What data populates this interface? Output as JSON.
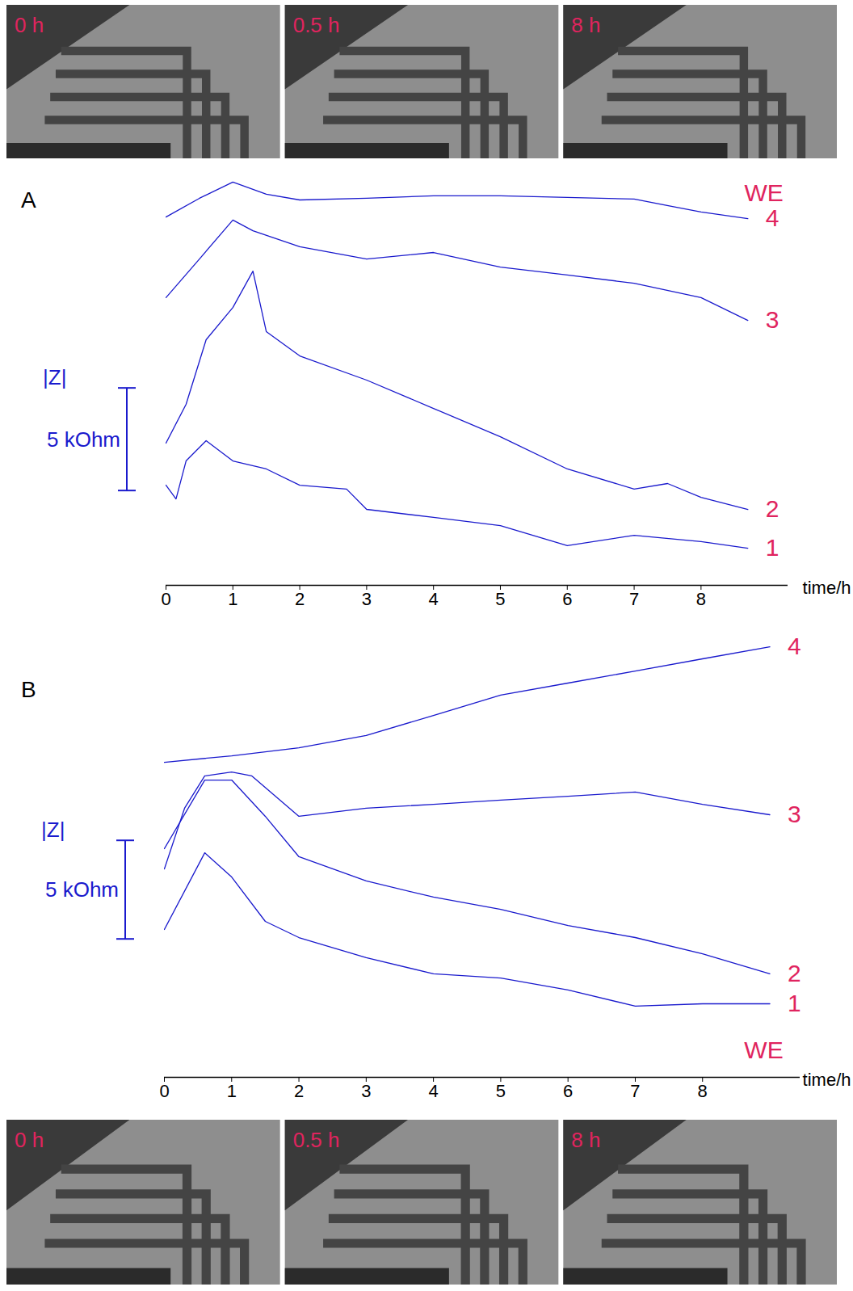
{
  "chart_data": [
    {
      "type": "line",
      "title": "A",
      "xlabel": "time/h",
      "xlim": [
        0,
        9.3
      ],
      "xticks": [
        0,
        1,
        2,
        3,
        4,
        5,
        6,
        7,
        8
      ],
      "ylim": [
        0,
        20
      ],
      "tick_labels": "x",
      "grid": false,
      "scale_bar": {
        "title": "|Z|",
        "label": "5 kOhm",
        "value": 5,
        "from": 4.6
      },
      "annotations": [
        {
          "text": "WE",
          "x": 8.94,
          "y": 19.1
        }
      ],
      "series": [
        {
          "name": "1",
          "color": "#1a1acd",
          "x": [
            0,
            0.15,
            0.3,
            0.6,
            1,
            1.5,
            2,
            2.7,
            3,
            4,
            5,
            6,
            7,
            8,
            8.7
          ],
          "values": [
            4.88,
            4.21,
            6.06,
            7.05,
            6.06,
            5.67,
            4.88,
            4.69,
            3.7,
            3.31,
            2.91,
            1.93,
            2.44,
            2.13,
            1.81
          ]
        },
        {
          "name": "2",
          "color": "#1a1acd",
          "x": [
            0,
            0.3,
            0.6,
            1,
            1.3,
            1.5,
            2,
            3,
            4,
            5,
            6,
            7,
            7.5,
            8,
            8.7
          ],
          "values": [
            6.93,
            8.82,
            11.97,
            13.54,
            15.31,
            12.36,
            11.18,
            10.0,
            8.62,
            7.24,
            5.67,
            4.69,
            4.96,
            4.29,
            3.7
          ]
        },
        {
          "name": "3",
          "color": "#1a1acd",
          "x": [
            0,
            0.5,
            1,
            1.3,
            2,
            3,
            4,
            5,
            6,
            7,
            8,
            8.7
          ],
          "values": [
            14.02,
            15.9,
            17.8,
            17.28,
            16.5,
            15.9,
            16.22,
            15.51,
            15.12,
            14.72,
            14.02,
            12.91
          ]
        },
        {
          "name": "4",
          "color": "#1a1acd",
          "x": [
            0,
            0.5,
            1,
            1.5,
            2,
            3,
            4,
            5,
            6,
            7,
            8,
            8.7
          ],
          "values": [
            17.95,
            18.86,
            19.65,
            19.06,
            18.78,
            18.86,
            18.98,
            18.98,
            18.9,
            18.82,
            18.19,
            17.87
          ]
        }
      ]
    },
    {
      "type": "line",
      "title": "B",
      "xlabel": "time/h",
      "xlim": [
        0,
        9.45
      ],
      "xticks": [
        0,
        1,
        2,
        3,
        4,
        5,
        6,
        7,
        8
      ],
      "ylim": [
        0,
        22.5
      ],
      "tick_labels": "x",
      "grid": false,
      "scale_bar": {
        "title": "|Z|",
        "label": "5 kOhm",
        "value": 5,
        "from": 7.0
      },
      "annotations": [
        {
          "text": "WE",
          "x": 8.91,
          "y": 1.35
        }
      ],
      "series": [
        {
          "name": "1",
          "color": "#1a1acd",
          "x": [
            0,
            0.6,
            1,
            1.5,
            2,
            3,
            4,
            5,
            6,
            7,
            8,
            9
          ],
          "values": [
            7.5,
            11.39,
            10.16,
            7.91,
            7.09,
            6.07,
            5.25,
            5.04,
            4.43,
            3.61,
            3.73,
            3.73
          ]
        },
        {
          "name": "2",
          "color": "#1a1acd",
          "x": [
            0,
            0.6,
            1,
            1.5,
            2,
            3,
            4,
            5,
            6,
            7,
            8,
            9
          ],
          "values": [
            11.6,
            15.08,
            15.08,
            13.24,
            11.19,
            9.96,
            9.14,
            8.52,
            7.7,
            7.09,
            6.27,
            5.25
          ]
        },
        {
          "name": "3",
          "color": "#1a1acd",
          "x": [
            0,
            0.3,
            0.6,
            1,
            1.3,
            2,
            3,
            4,
            5,
            6,
            7,
            8,
            9
          ],
          "values": [
            10.57,
            13.65,
            15.29,
            15.49,
            15.29,
            13.24,
            13.65,
            13.85,
            14.06,
            14.26,
            14.47,
            13.85,
            13.32
          ]
        },
        {
          "name": "4",
          "color": "#1a1acd",
          "x": [
            0,
            1,
            2,
            3,
            4,
            5,
            6,
            7,
            8,
            9
          ],
          "values": [
            15.98,
            16.31,
            16.72,
            17.34,
            18.36,
            19.39,
            20.0,
            20.61,
            21.23,
            21.84
          ]
        }
      ]
    }
  ],
  "photos": {
    "top": [
      "0 h",
      "0.5 h",
      "8 h"
    ],
    "bottom": [
      "0 h",
      "0.5 h",
      "8 h"
    ]
  }
}
